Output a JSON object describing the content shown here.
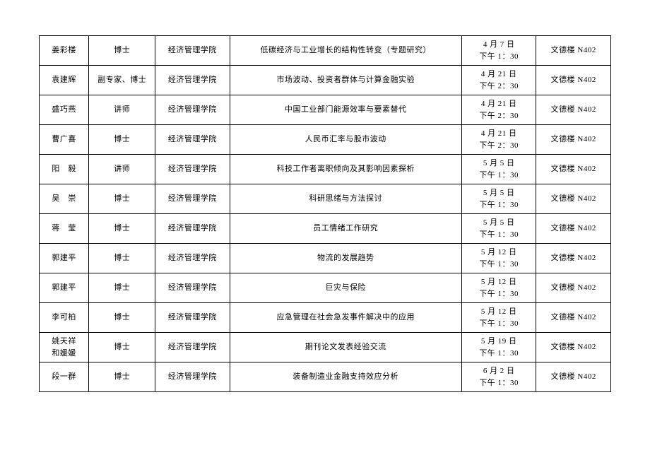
{
  "table": {
    "columns": [
      {
        "key": "name",
        "class": "col-name"
      },
      {
        "key": "title",
        "class": "col-title"
      },
      {
        "key": "dept",
        "class": "col-dept"
      },
      {
        "key": "topic",
        "class": "col-topic"
      },
      {
        "key": "date",
        "class": "col-date"
      },
      {
        "key": "loc",
        "class": "col-loc"
      }
    ],
    "rows": [
      {
        "name": "姜彩楼",
        "title": "博士",
        "dept": "经济管理学院",
        "topic": "低碳经济与工业增长的结构性转变（专题研究）",
        "date1": "4 月 7 日",
        "date2": "下午 1：30",
        "loc": "文德楼 N402"
      },
      {
        "name": "袁建辉",
        "title": "副专家、博士",
        "dept": "经济管理学院",
        "topic": "市场波动、投资者群体与计算金融实验",
        "date1": "4 月 21 日",
        "date2": "下午 2：30",
        "loc": "文德楼 N402"
      },
      {
        "name": "盛巧燕",
        "title": "讲师",
        "dept": "经济管理学院",
        "topic": "中国工业部门能源效率与要素替代",
        "date1": "4 月 21 日",
        "date2": "下午 2：30",
        "loc": "文德楼 N402"
      },
      {
        "name": "曹广喜",
        "title": "博士",
        "dept": "经济管理学院",
        "topic": "人民币汇率与股市波动",
        "date1": "4 月 21 日",
        "date2": "下午 2：30",
        "loc": "文德楼 N402"
      },
      {
        "name": "阳　毅",
        "title": "讲师",
        "dept": "经济管理学院",
        "topic": "科技工作者离职倾向及其影响因素探析",
        "date1": "5 月 5 日",
        "date2": "下午 1：30",
        "loc": "文德楼 N402"
      },
      {
        "name": "吴　崇",
        "title": "博士",
        "dept": "经济管理学院",
        "topic": "科研思绪与方法探讨",
        "date1": "5 月 5 日",
        "date2": "下午 1：30",
        "loc": "文德楼 N402"
      },
      {
        "name": "蒋　莹",
        "title": "博士",
        "dept": "经济管理学院",
        "topic": "员工情绪工作研究",
        "date1": "5 月 5 日",
        "date2": "下午 1：30",
        "loc": "文德楼 N402"
      },
      {
        "name": "郭建平",
        "title": "博士",
        "dept": "经济管理学院",
        "topic": "物流的发展趋势",
        "date1": "5 月 12 日",
        "date2": "下午 1：30",
        "loc": "文德楼 N402"
      },
      {
        "name": "郭建平",
        "title": "博士",
        "dept": "经济管理学院",
        "topic": "巨灾与保险",
        "date1": "5 月 12 日",
        "date2": "下午 1：30",
        "loc": "文德楼 N402"
      },
      {
        "name": "李可柏",
        "title": "博士",
        "dept": "经济管理学院",
        "topic": "应急管理在社会急发事件解决中的应用",
        "date1": "5 月 12 日",
        "date2": "下午 1：30",
        "loc": "文德楼 N402"
      },
      {
        "name": "姚天祥\n和媛媛",
        "title": "博士",
        "dept": "经济管理学院",
        "topic": "期刊论文发表经验交流",
        "date1": "5 月 19 日",
        "date2": "下午 1：30",
        "loc": "文德楼 N402"
      },
      {
        "name": "段一群",
        "title": "博士",
        "dept": "经济管理学院",
        "topic": "装备制造业金融支持效应分析",
        "date1": "6 月 2 日",
        "date2": "下午 1：30",
        "loc": "文德楼 N402"
      }
    ]
  }
}
